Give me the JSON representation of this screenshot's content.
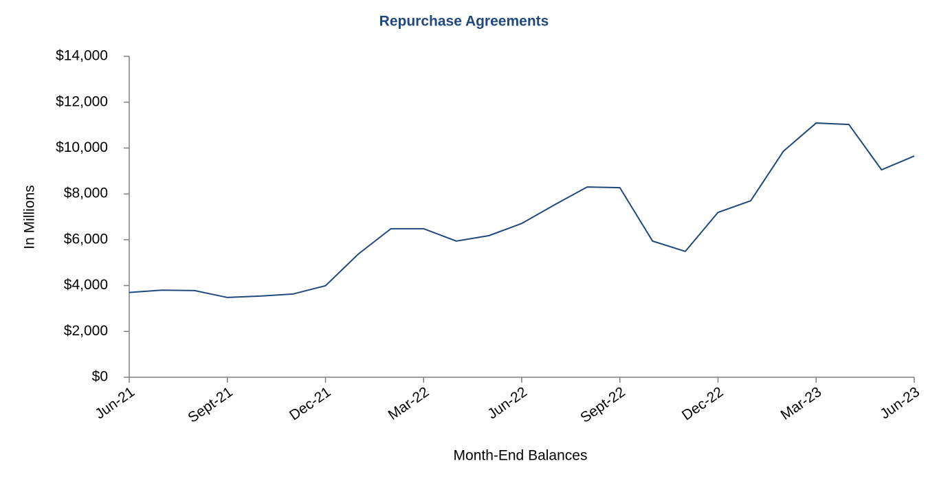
{
  "chart_data": {
    "type": "line",
    "title": "Repurchase Agreements",
    "x_label": "Month-End Balances",
    "y_label": "In Millions",
    "categories": [
      "Jun-21",
      null,
      null,
      "Sept-21",
      null,
      null,
      "Dec-21",
      null,
      null,
      "Mar-22",
      null,
      null,
      "Jun-22",
      null,
      null,
      "Sept-22",
      null,
      null,
      "Dec-22",
      null,
      null,
      "Mar-23",
      null,
      null,
      "Jun-23"
    ],
    "series": [
      {
        "name": "Repurchase Agreements",
        "color": "#1f497d",
        "values": [
          3700,
          3800,
          3780,
          3480,
          3540,
          3630,
          3990,
          5370,
          6480,
          6480,
          5940,
          6180,
          6710,
          7520,
          8300,
          8270,
          5940,
          5490,
          7190,
          7700,
          9860,
          11090,
          11030,
          9050,
          9650
        ]
      }
    ],
    "ylim": [
      0,
      14000
    ],
    "yticks": [
      {
        "value": 0,
        "label": "$0"
      },
      {
        "value": 2000,
        "label": "$2,000"
      },
      {
        "value": 4000,
        "label": "$4,000"
      },
      {
        "value": 6000,
        "label": "$6,000"
      },
      {
        "value": 8000,
        "label": "$8,000"
      },
      {
        "value": 10000,
        "label": "$10,000"
      },
      {
        "value": 12000,
        "label": "$12,000"
      },
      {
        "value": 14000,
        "label": "$14,000"
      }
    ],
    "grid": false
  }
}
